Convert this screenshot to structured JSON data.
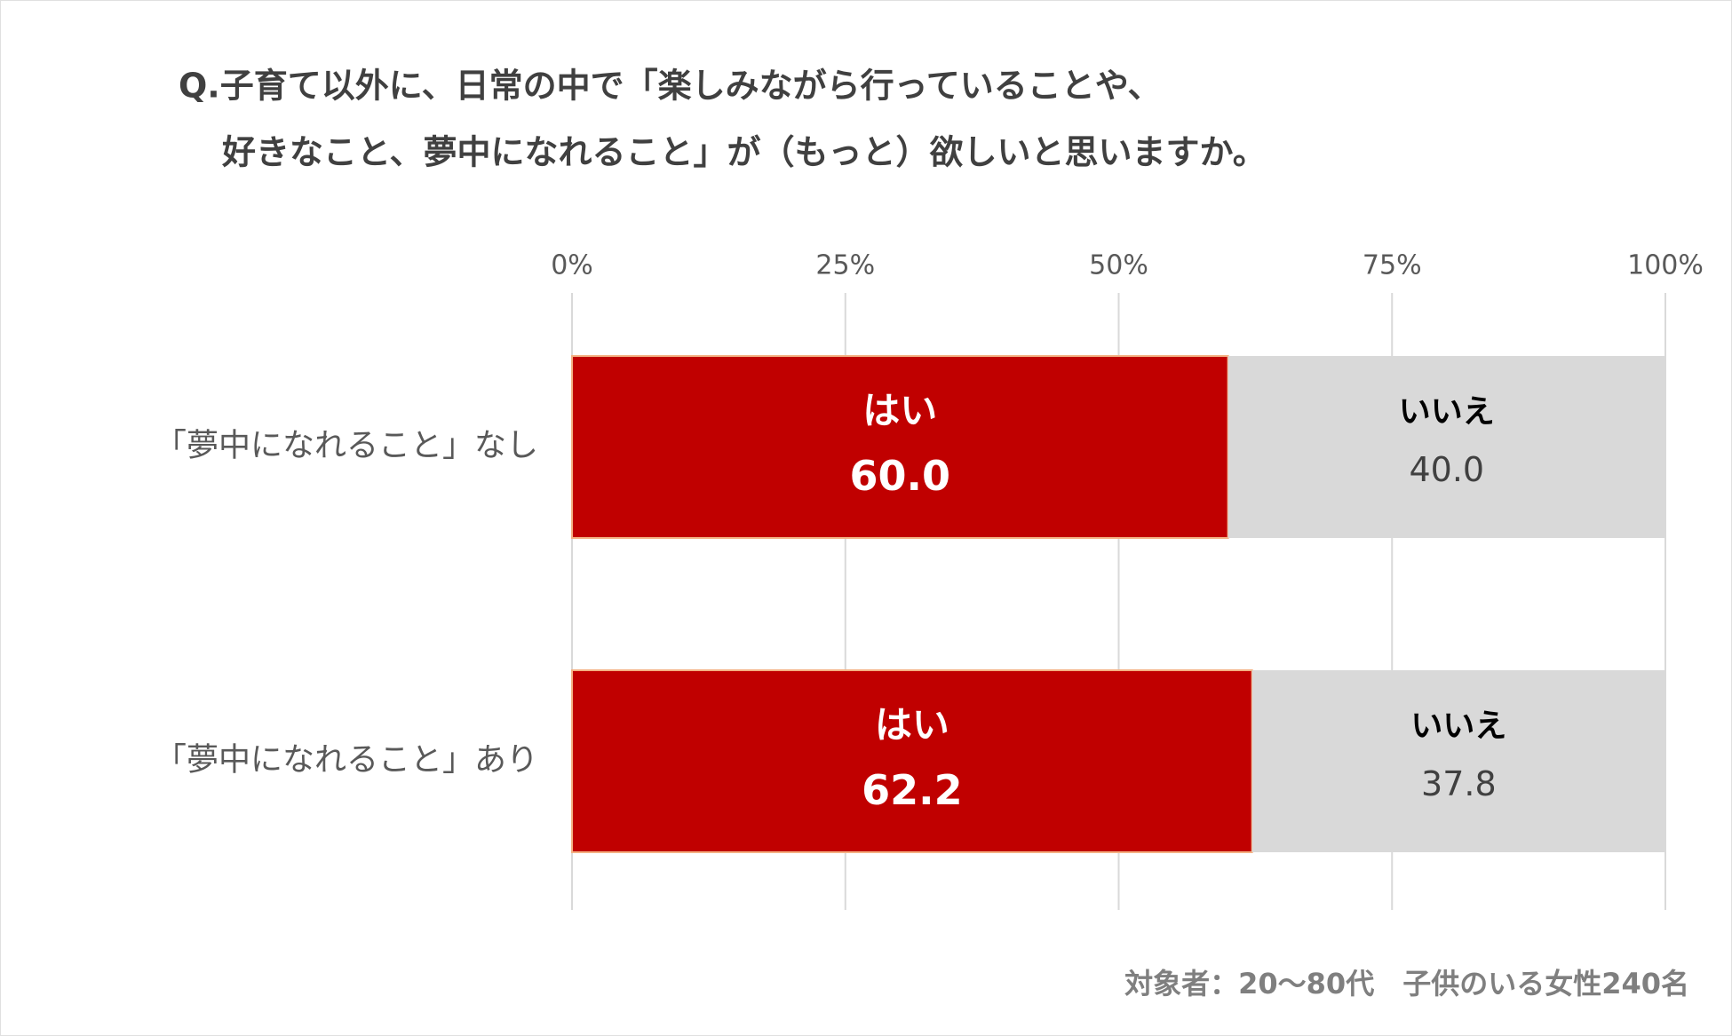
{
  "chart_data": {
    "type": "stacked-bar-horizontal",
    "title": [
      "Q.子育て以外に、日常の中で「楽しみながら行っていることや、",
      "好きなこと、夢中になれること」が（もっと）欲しいと思いますか。"
    ],
    "categories": [
      "「夢中になれること」なし",
      "「夢中になれること」あり"
    ],
    "series": [
      {
        "name": "はい",
        "color": "#c00000",
        "values": [
          60.0,
          62.2
        ],
        "value_labels": [
          "60.0",
          "62.2"
        ]
      },
      {
        "name": "いいえ",
        "color": "#d9d9d9",
        "values": [
          40.0,
          37.8
        ],
        "value_labels": [
          "40.0",
          "37.8"
        ]
      }
    ],
    "xlim": [
      0,
      100
    ],
    "xticks": [
      {
        "value": 0,
        "label": "0%"
      },
      {
        "value": 25,
        "label": "25%"
      },
      {
        "value": 50,
        "label": "50%"
      },
      {
        "value": 75,
        "label": "75%"
      },
      {
        "value": 100,
        "label": "100%"
      }
    ],
    "grid": true,
    "note": "対象者：20～80代　子供のいる女性240名"
  }
}
